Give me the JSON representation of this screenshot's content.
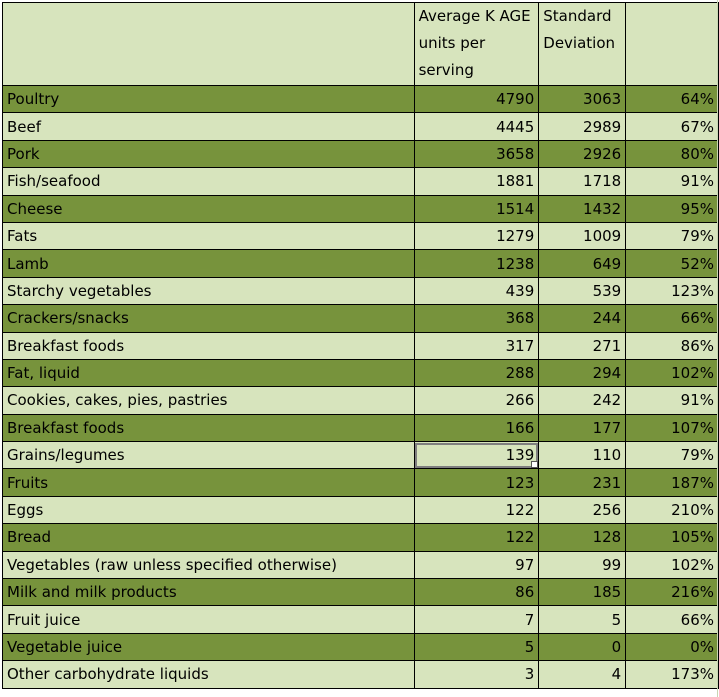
{
  "header": {
    "col1": "Average K AGE units per serving",
    "col2": "Standard Deviation",
    "col3": ""
  },
  "rows": [
    {
      "name": "Poultry",
      "avg": "4790",
      "sd": "3063",
      "pct": "64%"
    },
    {
      "name": "Beef",
      "avg": "4445",
      "sd": "2989",
      "pct": "67%"
    },
    {
      "name": "Pork",
      "avg": "3658",
      "sd": "2926",
      "pct": "80%"
    },
    {
      "name": "Fish/seafood",
      "avg": "1881",
      "sd": "1718",
      "pct": "91%"
    },
    {
      "name": "Cheese",
      "avg": "1514",
      "sd": "1432",
      "pct": "95%"
    },
    {
      "name": "Fats",
      "avg": "1279",
      "sd": "1009",
      "pct": "79%"
    },
    {
      "name": "Lamb",
      "avg": "1238",
      "sd": "649",
      "pct": "52%"
    },
    {
      "name": "Starchy vegetables",
      "avg": "439",
      "sd": "539",
      "pct": "123%"
    },
    {
      "name": "Crackers/snacks",
      "avg": "368",
      "sd": "244",
      "pct": "66%"
    },
    {
      "name": "Breakfast foods",
      "avg": "317",
      "sd": "271",
      "pct": "86%"
    },
    {
      "name": "Fat, liquid",
      "avg": "288",
      "sd": "294",
      "pct": "102%"
    },
    {
      "name": "Cookies, cakes, pies, pastries",
      "avg": "266",
      "sd": "242",
      "pct": "91%"
    },
    {
      "name": "Breakfast foods",
      "avg": "166",
      "sd": "177",
      "pct": "107%"
    },
    {
      "name": "Grains/legumes",
      "avg": "139",
      "sd": "110",
      "pct": "79%"
    },
    {
      "name": "Fruits",
      "avg": "123",
      "sd": "231",
      "pct": "187%"
    },
    {
      "name": "Eggs",
      "avg": "122",
      "sd": "256",
      "pct": "210%"
    },
    {
      "name": "Bread",
      "avg": "122",
      "sd": "128",
      "pct": "105%"
    },
    {
      "name": "Vegetables (raw unless specified otherwise)",
      "avg": "97",
      "sd": "99",
      "pct": "102%"
    },
    {
      "name": "Milk and milk products",
      "avg": "86",
      "sd": "185",
      "pct": "216%"
    },
    {
      "name": "Fruit juice",
      "avg": "7",
      "sd": "5",
      "pct": "66%"
    },
    {
      "name": "Vegetable juice",
      "avg": "5",
      "sd": "0",
      "pct": "0%"
    },
    {
      "name": "Other carbohydrate liquids",
      "avg": "3",
      "sd": "4",
      "pct": "173%"
    }
  ],
  "colors": {
    "dark_row": "#77933c",
    "light_row": "#d7e4bd"
  }
}
